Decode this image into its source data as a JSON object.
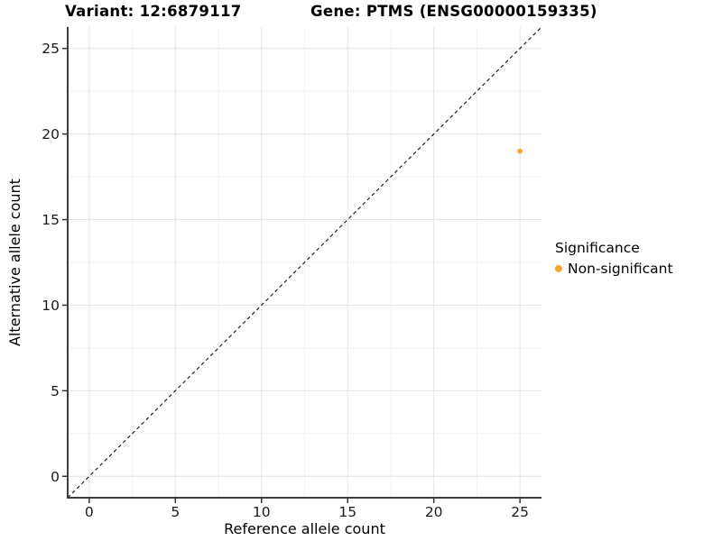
{
  "chart_data": {
    "type": "scatter",
    "titles": {
      "left": "Variant: 12:6879117",
      "right": "Gene: PTMS (ENSG00000159335)"
    },
    "xlabel": "Reference allele count",
    "ylabel": "Alternative allele count",
    "xlim": [
      -1.25,
      26.25
    ],
    "ylim": [
      -1.25,
      26.25
    ],
    "xticks": [
      0,
      5,
      10,
      15,
      20,
      25
    ],
    "yticks": [
      0,
      5,
      10,
      15,
      20,
      25
    ],
    "minor_xticks": [
      2.5,
      7.5,
      12.5,
      17.5,
      22.5
    ],
    "minor_yticks": [
      2.5,
      7.5,
      12.5,
      17.5,
      22.5
    ],
    "grid": true,
    "identity_line": {
      "type": "abline",
      "slope": 1,
      "intercept": 0,
      "style": "dashed",
      "color": "#111111"
    },
    "points": [
      {
        "x": 25,
        "y": 19,
        "series": "Non-significant"
      }
    ],
    "legend": {
      "title": "Significance",
      "position": "right",
      "entries": [
        {
          "label": "Non-significant",
          "color": "#F9A332"
        }
      ]
    },
    "colors": {
      "point": "#F9A332",
      "grid_major": "#e4e4e4",
      "grid_minor": "#f2f2f2",
      "axis_line": "#3d3d3d",
      "tick_mark": "#333333",
      "tick_label": "#1a1a1a"
    }
  }
}
